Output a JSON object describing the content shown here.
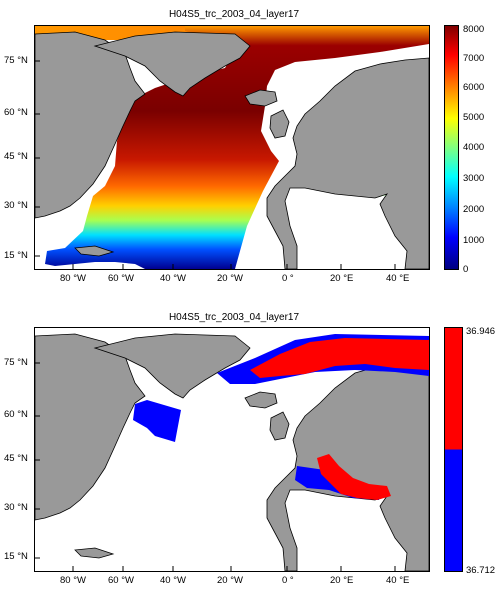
{
  "panels": [
    {
      "title": "H04S5_trc_2003_04_layer17",
      "y_ticks": [
        "75 °N",
        "60 °N",
        "45 °N",
        "30 °N",
        "15 °N"
      ],
      "x_ticks": [
        "80 °W",
        "60 °W",
        "40 °W",
        "20 °W",
        "0 °",
        "20 °E",
        "40 °E"
      ],
      "colorbar": {
        "type": "jet",
        "ticks": [
          "8000",
          "7000",
          "6000",
          "5000",
          "4000",
          "3000",
          "2000",
          "1000",
          "0"
        ],
        "range": [
          0,
          8000
        ]
      }
    },
    {
      "title": "H04S5_trc_2003_04_layer17",
      "y_ticks": [
        "75 °N",
        "60 °N",
        "45 °N",
        "30 °N",
        "15 °N"
      ],
      "x_ticks": [
        "80 °W",
        "60 °W",
        "40 °W",
        "20 °W",
        "0 °",
        "20 °E",
        "40 °E"
      ],
      "colorbar": {
        "type": "binary",
        "ticks": [
          "36.946",
          "36.712"
        ],
        "colors": [
          "#ff0000",
          "#0000ff"
        ],
        "range": [
          36.712,
          36.946
        ]
      }
    }
  ],
  "colors": {
    "land": "#999999",
    "ocean_nodata": "#ffffff",
    "coast": "#000000"
  }
}
